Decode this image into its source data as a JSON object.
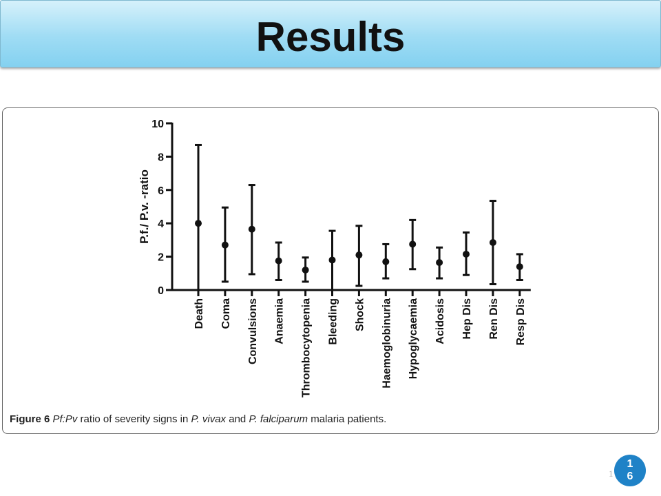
{
  "slide": {
    "title": "Results",
    "badge": "16",
    "faint_number": "1"
  },
  "caption": {
    "lead": "Figure 6",
    "part1": "Pf:Pv",
    "part2": " ratio of severity signs in ",
    "part3": "P. vivax",
    "part4": " and ",
    "part5": "P. falciparum",
    "part6": " malaria patients."
  },
  "chart_data": {
    "type": "scatter",
    "error_bars": true,
    "title": "",
    "xlabel": "",
    "ylabel": "P.f./ P.v. -ratio",
    "ylim": [
      0,
      10
    ],
    "yticks": [
      0,
      2,
      4,
      6,
      8,
      10
    ],
    "grid": false,
    "categories": [
      "Death",
      "Coma",
      "Convulsions",
      "Anaemia",
      "Thrombocytopenia",
      "Bleeding",
      "Shock",
      "Haemoglobinuria",
      "Hypoglycaemia",
      "Acidosis",
      "Hep Dis",
      "Ren Dis",
      "Resp Dis"
    ],
    "series": [
      {
        "values": [
          4.0,
          2.7,
          3.65,
          1.75,
          1.2,
          1.8,
          2.1,
          1.7,
          2.75,
          1.65,
          2.15,
          2.85,
          1.4
        ],
        "lower": [
          0.0,
          0.5,
          0.95,
          0.6,
          0.5,
          0.0,
          0.25,
          0.7,
          1.25,
          0.7,
          0.9,
          0.35,
          0.6
        ],
        "upper": [
          8.7,
          4.95,
          6.3,
          2.85,
          1.95,
          3.55,
          3.85,
          2.75,
          4.2,
          2.55,
          3.45,
          5.35,
          2.15
        ]
      }
    ],
    "colors": {
      "marks": "#111111"
    }
  }
}
